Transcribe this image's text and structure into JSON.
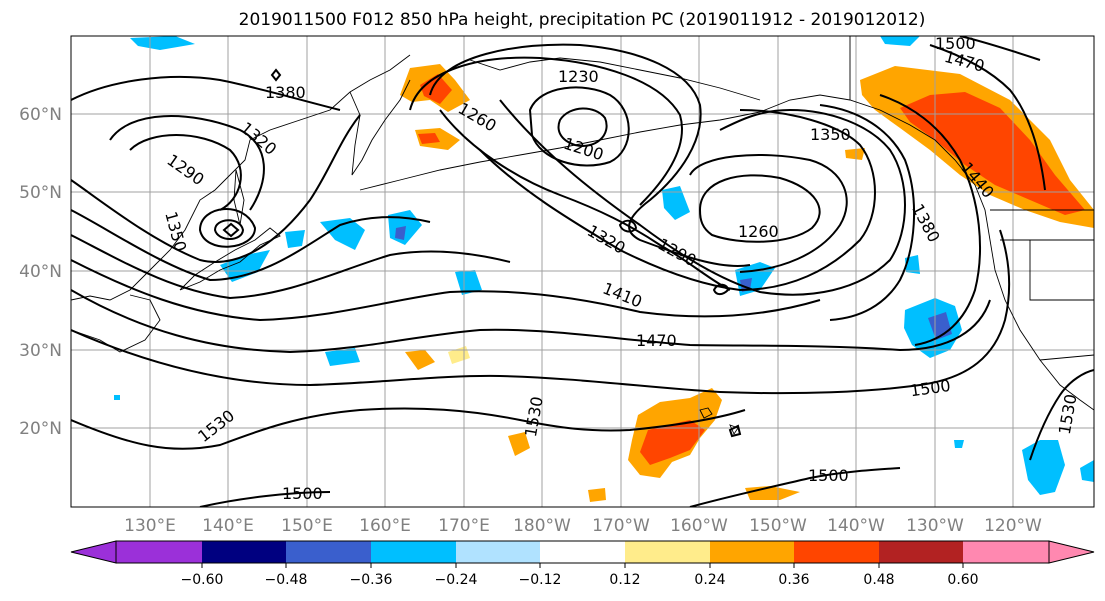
{
  "title": "2019011500 F012 850 hPa height, precipitation PC (2019011912 - 2019012012)",
  "map": {
    "lon_labels": [
      "130°E",
      "140°E",
      "150°E",
      "160°E",
      "170°E",
      "180°W",
      "170°W",
      "160°W",
      "150°W",
      "140°W",
      "130°W",
      "120°W"
    ],
    "lat_labels": [
      "60°N",
      "50°N",
      "40°N",
      "30°N",
      "20°N"
    ],
    "gridline_color": "#a0a0a0",
    "contour_color": "#000000",
    "contour_labels": [
      "1380",
      "1320",
      "1290",
      "1350",
      "1230",
      "1260",
      "1200",
      "1500",
      "1470",
      "1350",
      "1260",
      "1320",
      "1290",
      "1410",
      "1470",
      "1380",
      "1440",
      "1500",
      "1530",
      "1530",
      "1530",
      "1500",
      "1500"
    ]
  },
  "colorbar": {
    "tick_labels": [
      "−0.60",
      "−0.48",
      "−0.36",
      "−0.24",
      "−0.12",
      "0.12",
      "0.24",
      "0.36",
      "0.48",
      "0.60"
    ],
    "colors": [
      "#9b30d9",
      "#000080",
      "#3a5fcd",
      "#00bfff",
      "#b0e2ff",
      "#ffffff",
      "#ffec8b",
      "#ffa500",
      "#ff4500",
      "#b22222",
      "#ff88b0"
    ]
  }
}
